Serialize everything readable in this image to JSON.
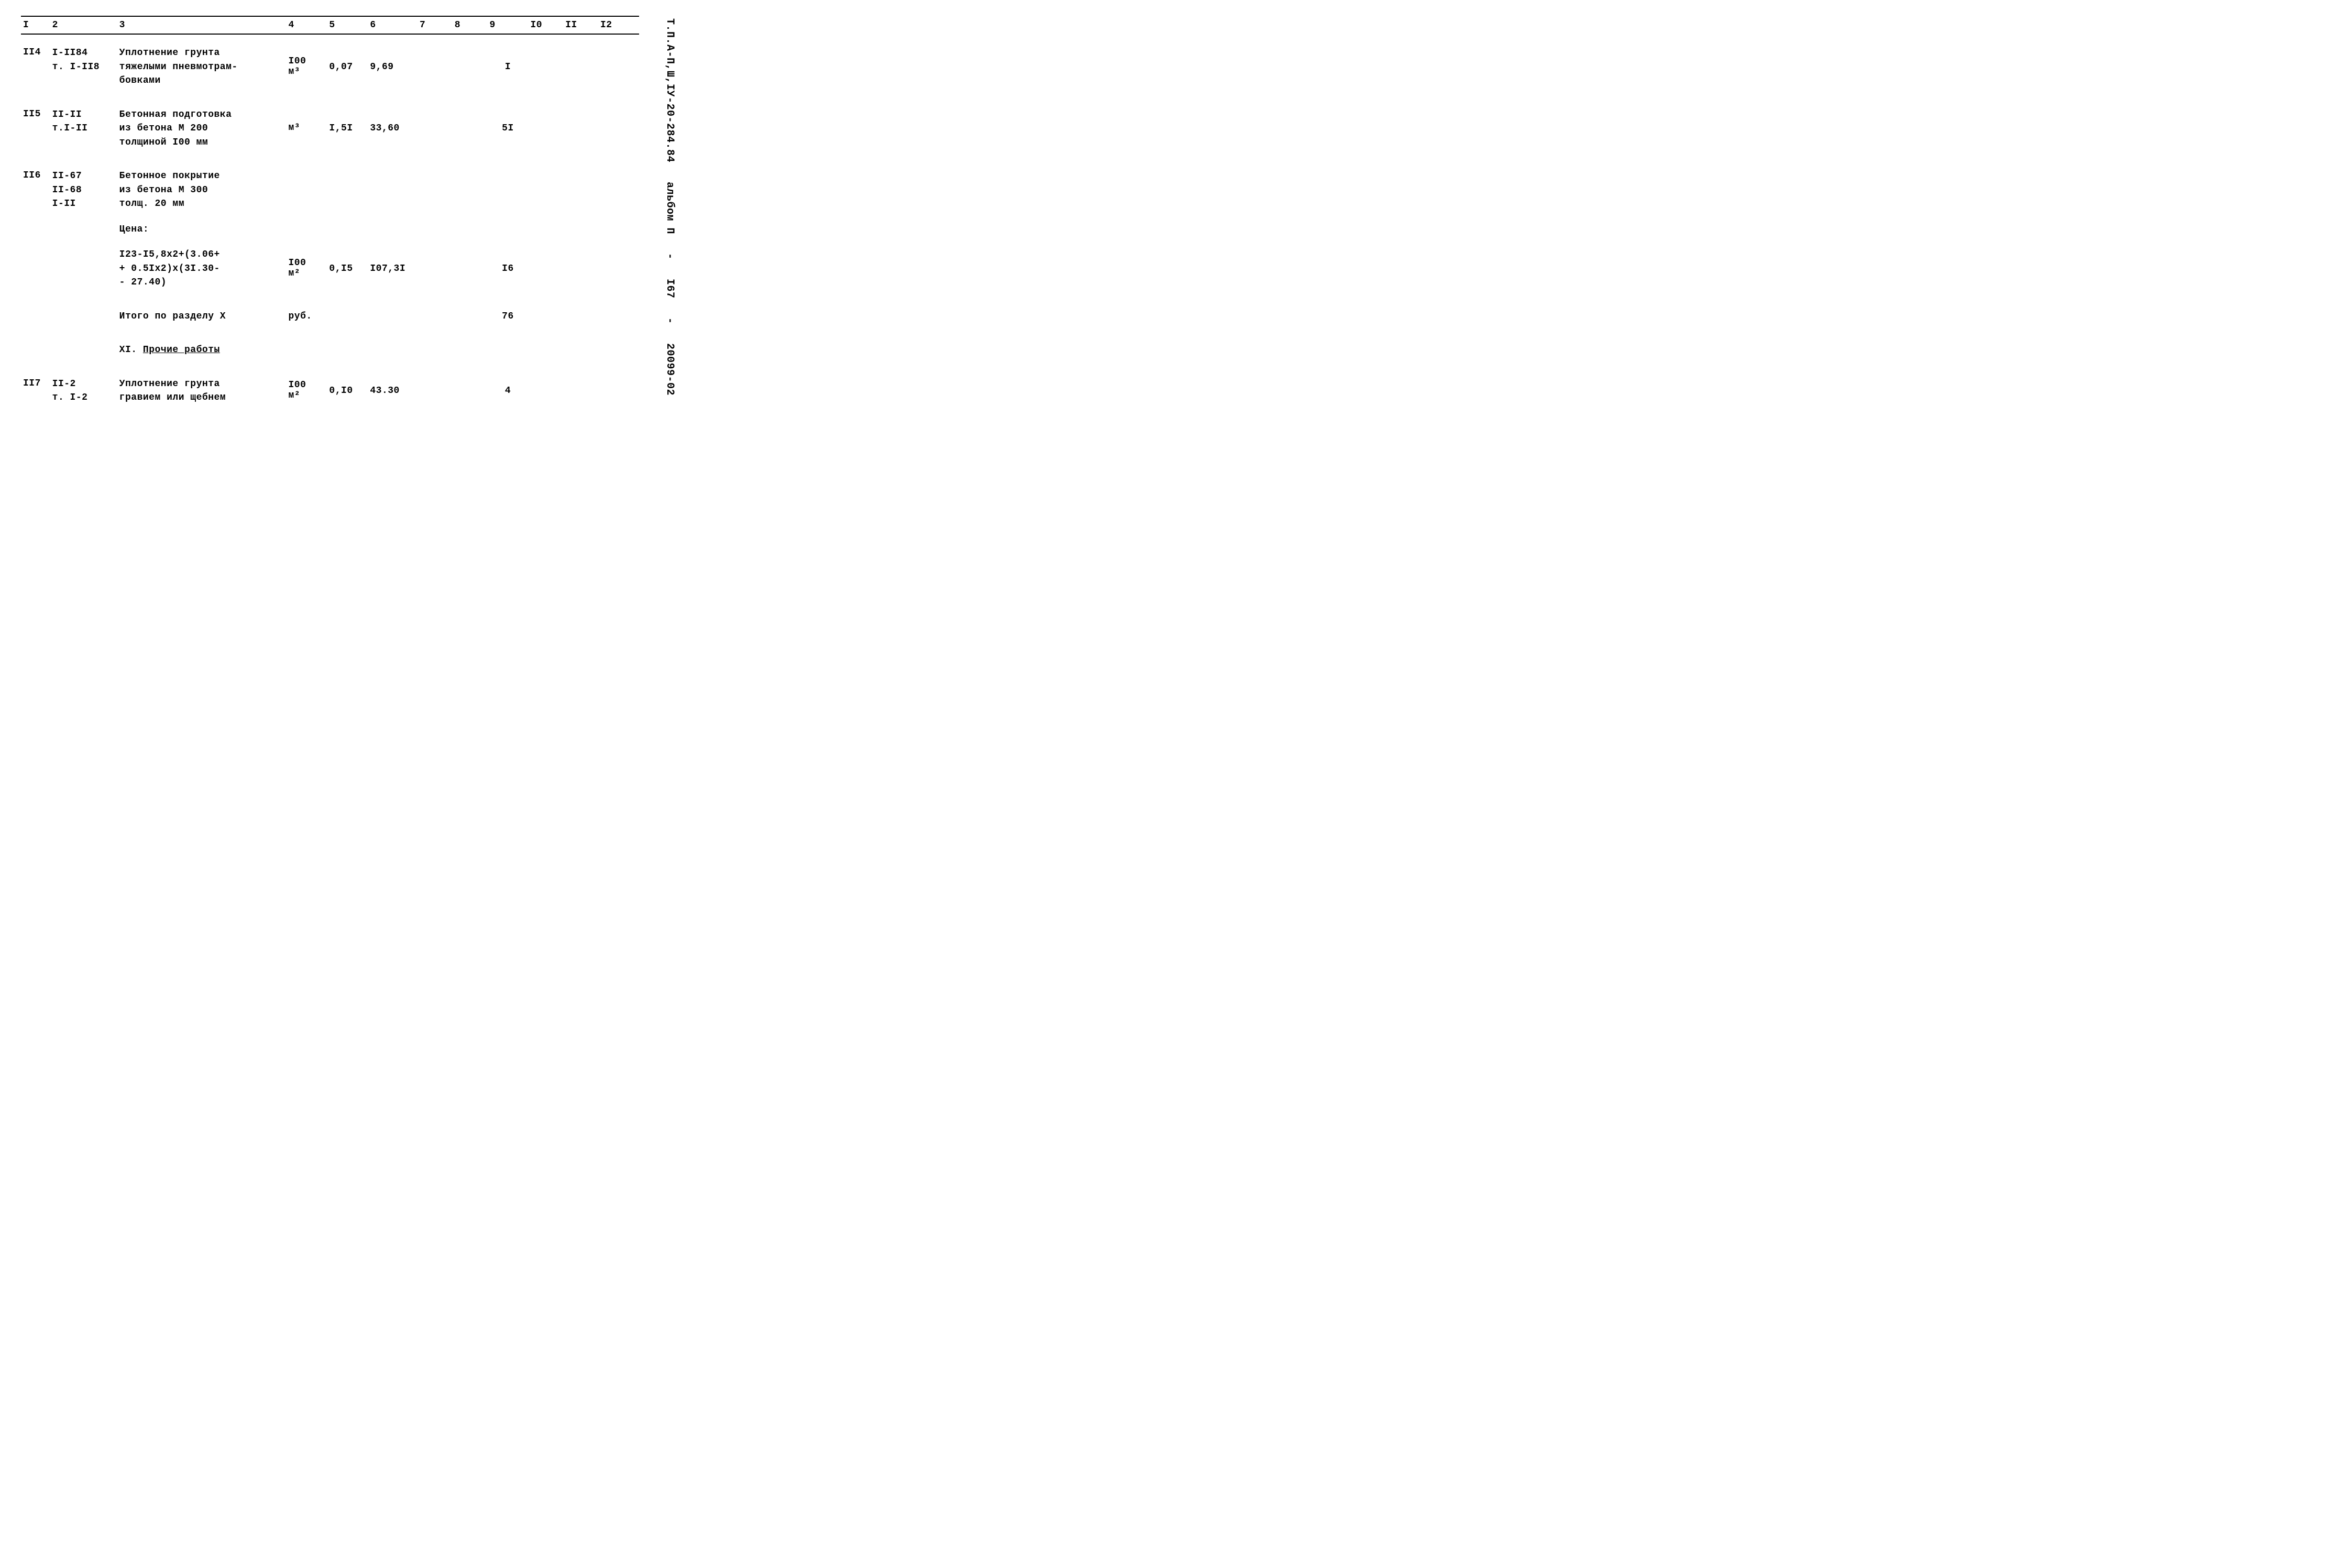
{
  "margin": {
    "doc_code": "Т.П.А-П,Ш,IУ-20-284.84",
    "album": "альбом  П",
    "dash1": "-",
    "page_num": "I67",
    "dash2": "-",
    "serial": "20099-02"
  },
  "headers": [
    "I",
    "2",
    "3",
    "4",
    "5",
    "6",
    "7",
    "8",
    "9",
    "I0",
    "II",
    "I2"
  ],
  "rows": {
    "r114": {
      "no": "II4",
      "code_l1": "I-II84",
      "code_l2": "т. I-II8",
      "desc_l1": "Уплотнение грунта",
      "desc_l2": "тяжелыми пневмотрам-",
      "desc_l3": "бовками",
      "unit_top": "I00",
      "unit_bot": "м³",
      "col5": "0,07",
      "col6": "9,69",
      "col9": "I"
    },
    "r115": {
      "no": "II5",
      "code_l1": "II-II",
      "code_l2": "т.I-II",
      "desc_l1": "Бетонная подготовка",
      "desc_l2": "из бетона М 200",
      "desc_l3": "толщиной I00 мм",
      "unit": "м³",
      "col5": "I,5I",
      "col6": "33,60",
      "col9": "5I"
    },
    "r116": {
      "no": "II6",
      "code_l1": "II-67",
      "code_l2": "II-68",
      "code_l3": "I-II",
      "desc_l1": "Бетонное покрытие",
      "desc_l2": "из бетона М 300",
      "desc_l3": "толщ. 20 мм",
      "price_label": "Цена:",
      "formula_l1": "I23-I5,8х2+(3.06+",
      "formula_l2": "+ 0.5Iх2)х(3I.30-",
      "formula_l3": "- 27.40)",
      "unit_top": "I00",
      "unit_bot": "м²",
      "col5": "0,I5",
      "col6": "I07,3I",
      "col9": "I6"
    },
    "subtotal": {
      "label": "Итого по разделу X",
      "unit": "руб.",
      "col9": "76"
    },
    "section": {
      "label": "XI. Прочие работы"
    },
    "r117": {
      "no": "II7",
      "code_l1": "II-2",
      "code_l2": "т. I-2",
      "desc_l1": "Уплотнение грунта",
      "desc_l2": "гравием или щебнем",
      "unit_top": "I00",
      "unit_bot": "м²",
      "col5": "0,I0",
      "col6": "43.30",
      "col9": "4"
    }
  }
}
